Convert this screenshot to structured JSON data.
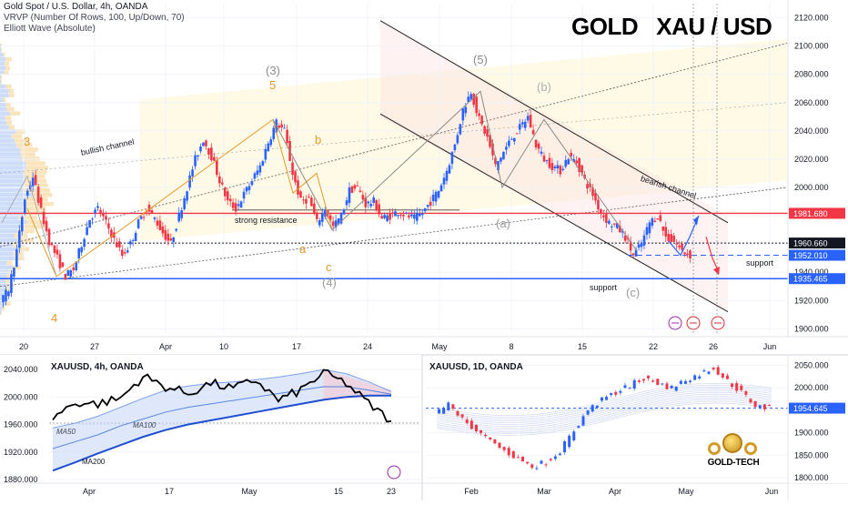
{
  "header": {
    "symbol": "Gold Spot / U.S. Dollar, 4h, OANDA",
    "indicator1": "VRVP (Number Of Rows, 100, Up/Down, 70)",
    "indicator2": "Elliott Wave (Absolute)",
    "big_title": "GOLD   XAU / USD"
  },
  "chart_data": [
    {
      "type": "line",
      "title": "Gold Spot / U.S. Dollar, 4h, OANDA",
      "x_ticks": [
        "20",
        "27",
        "Apr",
        "10",
        "17",
        "24",
        "May",
        "8",
        "15",
        "22",
        "26",
        "Jun"
      ],
      "y_ticks": [
        1900,
        1920,
        1940,
        1960,
        1980,
        2000,
        2020,
        2040,
        2060,
        2080,
        2100,
        2120
      ],
      "ylim": [
        1897,
        2130
      ],
      "series": [
        {
          "values": [
            1918,
            1928,
            1955,
            1992,
            2008,
            1983,
            1962,
            1950,
            1937,
            1942,
            1960,
            1978,
            1985,
            1975,
            1963,
            1952,
            1960,
            1975,
            1985,
            1978,
            1968,
            1960,
            1980,
            2000,
            2020,
            2034,
            2022,
            2005,
            1990,
            1985,
            1995,
            2005,
            2015,
            2032,
            2046,
            2040,
            2010,
            1990,
            1992,
            1975,
            1985,
            1972,
            1980,
            1998,
            2000,
            1988,
            1990,
            1978,
            1980,
            1983,
            1980,
            1978,
            1982,
            1990,
            1998,
            2012,
            2030,
            2055,
            2068,
            2048,
            2035,
            2015,
            2025,
            2035,
            2042,
            2050,
            2030,
            2020,
            2015,
            2012,
            2022,
            2018,
            2005,
            1995,
            1982,
            1975,
            1972,
            1965,
            1952,
            1960,
            1975,
            1980,
            1965,
            1962,
            1955,
            1952
          ]
        }
      ],
      "price_labels": [
        {
          "value": 1981.68,
          "text": "1981.680",
          "color": "#f23645"
        },
        {
          "value": 1960.66,
          "text": "1960.660",
          "color": "#131722"
        },
        {
          "value": 1952.01,
          "text": "1952.010",
          "color": "#2962ff"
        },
        {
          "value": 1935.465,
          "text": "1935.465",
          "color": "#2962ff"
        }
      ],
      "annotations": {
        "bullish_channel": "bullish channel",
        "bearish_channel": "bearish channel",
        "strong_resistance": "strong resistance",
        "support_left": "support",
        "support_right": "support",
        "w3": "(3)",
        "w5": "(5)",
        "wb": "(b)",
        "wa": "(a)",
        "wc": "(c)",
        "w4": "(4)",
        "n5": "5",
        "n3": "3",
        "n4": "4",
        "lb": "b",
        "la": "a",
        "lc": "c"
      }
    },
    {
      "type": "line",
      "title": "XAUUSD, 4h, OANDA",
      "x_ticks": [
        "Apr",
        "17",
        "May",
        "15",
        "23"
      ],
      "y_ticks": [
        1880,
        1920,
        1960,
        2000,
        2040
      ],
      "y_tick_labels": [
        "1880.000",
        "1920.000",
        "1960.000",
        "2000.000",
        "2040.000"
      ],
      "ylim": [
        1876,
        2056
      ],
      "series": [
        {
          "name": "MA50",
          "values": [
            1955,
            1962,
            1972,
            1985,
            1998,
            2010,
            2016,
            2020,
            2022,
            2025,
            2029,
            2034,
            2040,
            2034,
            2022,
            2008
          ]
        },
        {
          "name": "MA100",
          "values": [
            1925,
            1935,
            1945,
            1958,
            1968,
            1978,
            1985,
            1990,
            1995,
            2000,
            2005,
            2010,
            2015,
            2015,
            2010,
            2004
          ]
        },
        {
          "name": "MA200",
          "values": [
            1893,
            1905,
            1918,
            1930,
            1942,
            1952,
            1960,
            1966,
            1972,
            1978,
            1984,
            1990,
            1996,
            2000,
            2002,
            2002
          ]
        },
        {
          "name": "price",
          "values": [
            1970,
            1992,
            1990,
            1998,
            2030,
            2015,
            2005,
            2020,
            2012,
            2025,
            1995,
            2010,
            2035,
            2020,
            1990,
            1965
          ]
        }
      ]
    },
    {
      "type": "line",
      "title": "XAUUSD, 1D, OANDA",
      "x_ticks": [
        "Feb",
        "Mar",
        "Apr",
        "May",
        "Jun"
      ],
      "y_ticks": [
        1800,
        1850,
        1900,
        1950,
        2000,
        2050
      ],
      "ylim": [
        1790,
        2065
      ],
      "last_price": {
        "value": 1954.645,
        "text": "1954.645"
      },
      "series": [
        {
          "name": "price",
          "values": [
            1940,
            1962,
            1930,
            1905,
            1880,
            1860,
            1842,
            1825,
            1835,
            1860,
            1905,
            1950,
            1972,
            1990,
            2005,
            2020,
            2010,
            2000,
            2018,
            2030,
            2045,
            2015,
            1990,
            1960,
            1954
          ]
        }
      ]
    }
  ],
  "logo": {
    "text": "GOLD-TECH"
  },
  "colors": {
    "bull": "#2962ff",
    "bear": "#f23645",
    "gold": "#e39b2b",
    "accent": "#2962ff"
  }
}
